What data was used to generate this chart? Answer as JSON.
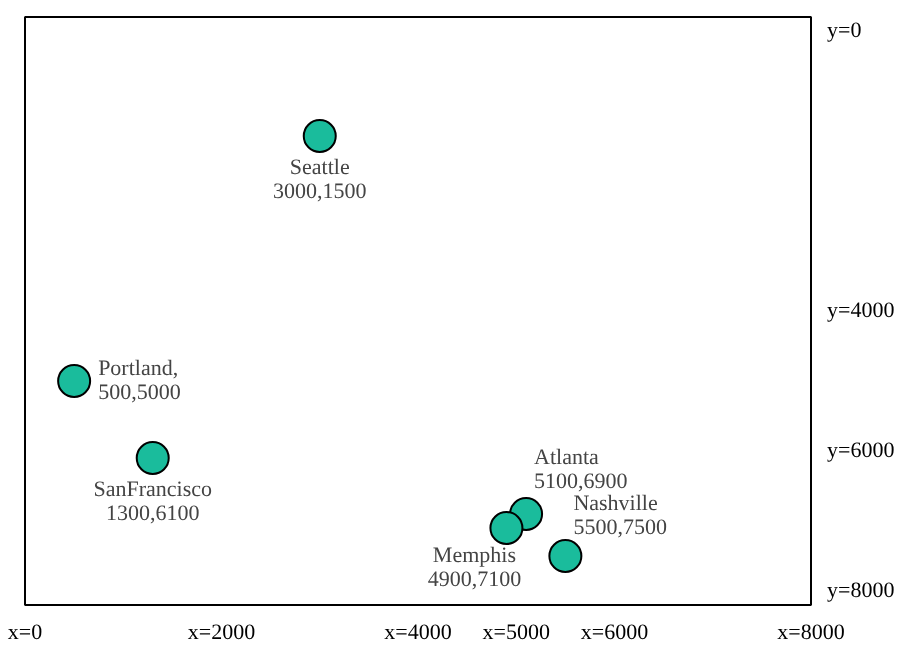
{
  "chart_data": {
    "type": "scatter",
    "x": [
      3000,
      500,
      1300,
      5100,
      4900,
      5500
    ],
    "values": [
      1500,
      5000,
      6100,
      6900,
      7100,
      7500
    ],
    "color": "#1abc9c",
    "marker": "circle",
    "grid": false,
    "xlim": [
      0,
      8000
    ],
    "ylim": [
      8200,
      -200
    ],
    "xticks": [
      {
        "value": 0,
        "label": "x=0"
      },
      {
        "value": 2000,
        "label": "x=2000"
      },
      {
        "value": 4000,
        "label": "x=4000"
      },
      {
        "value": 5000,
        "label": "x=5000"
      },
      {
        "value": 6000,
        "label": "x=6000"
      },
      {
        "value": 8000,
        "label": "x=8000"
      }
    ],
    "yticks": [
      {
        "value": 0,
        "label": "y=0"
      },
      {
        "value": 4000,
        "label": "y=4000"
      },
      {
        "value": 6000,
        "label": "y=6000"
      },
      {
        "value": 8000,
        "label": "y=8000"
      }
    ],
    "annotations": [
      {
        "text": "Seattle\n3000,1500",
        "x": 3000,
        "y": 1500
      },
      {
        "text": "Portland,\n500,5000",
        "x": 500,
        "y": 5000
      },
      {
        "text": "SanFrancisco\n1300,6100",
        "x": 1300,
        "y": 6100
      },
      {
        "text": "Atlanta\n5100,6900",
        "x": 5100,
        "y": 6900
      },
      {
        "text": "Memphis\n4900,7100",
        "x": 4900,
        "y": 7100
      },
      {
        "text": "Nashville\n5500,7500",
        "x": 5500,
        "y": 7500
      }
    ]
  }
}
